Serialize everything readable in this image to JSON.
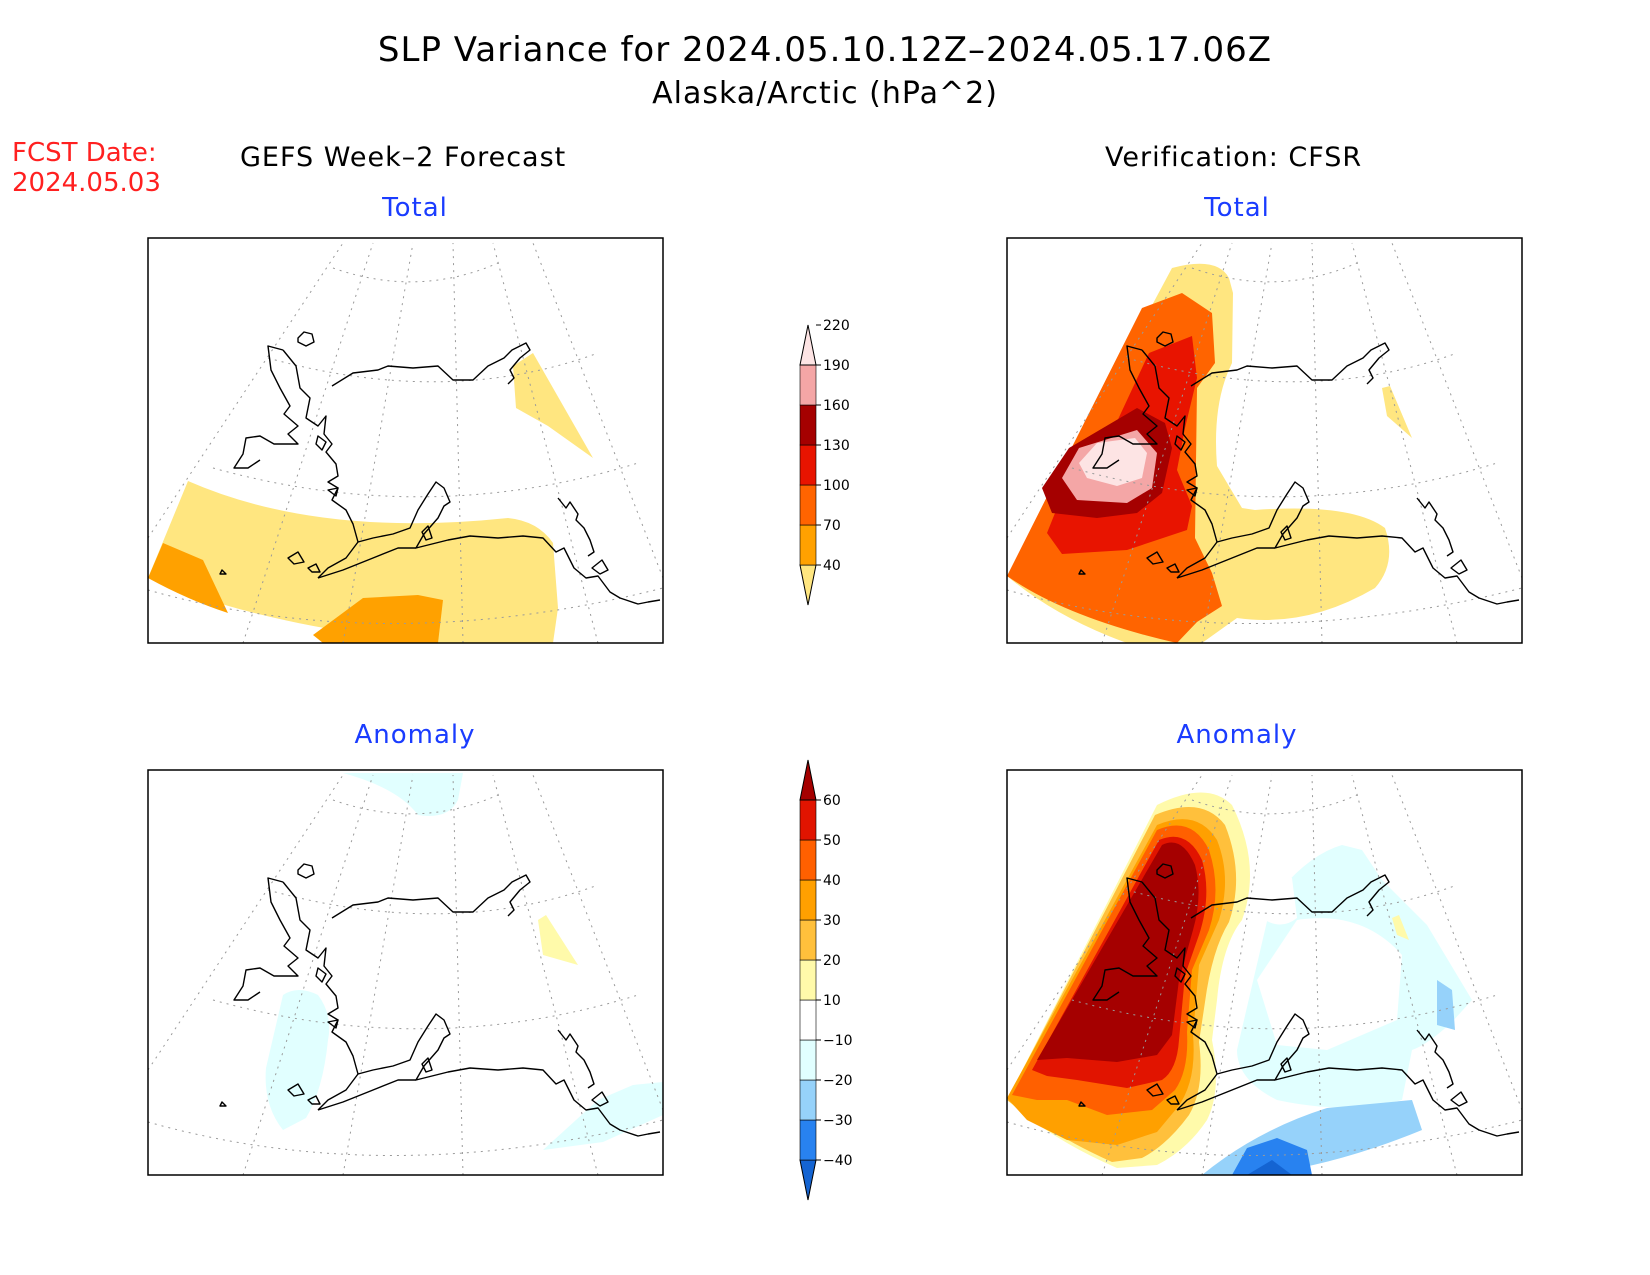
{
  "title": "SLP Variance for 2024.05.10.12Z–2024.05.17.06Z",
  "subtitle": "Alaska/Arctic (hPa^2)",
  "forecast_date": {
    "label": "FCST Date:",
    "value": "2024.05.03"
  },
  "left_column": {
    "heading": "GEFS Week–2 Forecast"
  },
  "right_column": {
    "heading": "Verification: CFSR"
  },
  "panels": {
    "total_left": {
      "title": "Total"
    },
    "total_right": {
      "title": "Total"
    },
    "anom_left": {
      "title": "Anomaly"
    },
    "anom_right": {
      "title": "Anomaly"
    }
  },
  "colorbar_total": {
    "labels": [
      "40",
      "70",
      "100",
      "130",
      "160",
      "190",
      "220"
    ],
    "colors": [
      "#ffe680",
      "#ffa100",
      "#ff6400",
      "#e81400",
      "#a50000",
      "#f4a6a6",
      "#fde4e4"
    ]
  },
  "colorbar_anomaly": {
    "labels": [
      "−40",
      "−30",
      "−20",
      "−10",
      "10",
      "20",
      "30",
      "40",
      "50",
      "60"
    ],
    "colors": [
      "#1464d2",
      "#2882f0",
      "#96d2fa",
      "#e1ffff",
      "#ffffff",
      "#fffaaa",
      "#ffc03c",
      "#ffa000",
      "#ff6000",
      "#e11400",
      "#a50000"
    ]
  }
}
